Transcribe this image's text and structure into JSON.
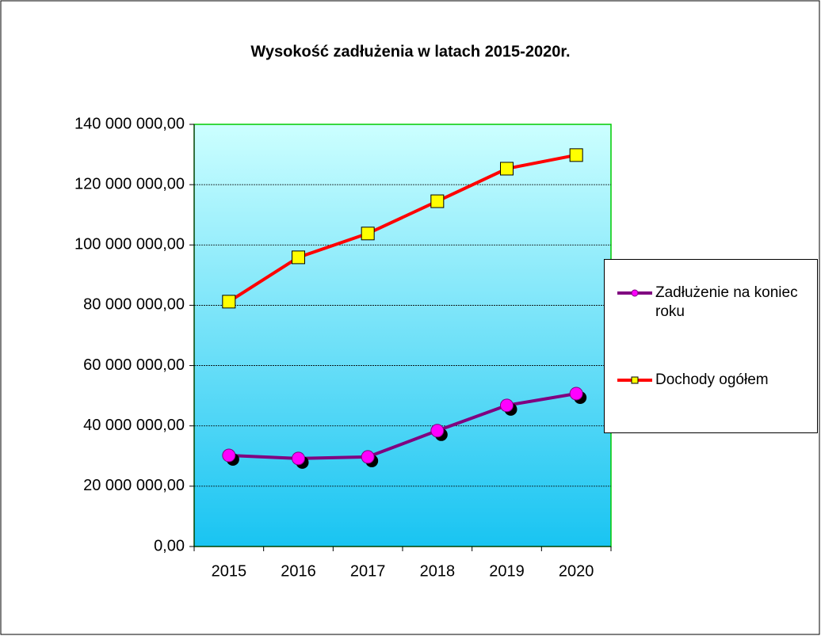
{
  "chart_data": {
    "type": "line",
    "title": "Wysokość zadłużenia w latach 2015-2020r.",
    "categories": [
      "2015",
      "2016",
      "2017",
      "2018",
      "2019",
      "2020"
    ],
    "series": [
      {
        "name": "Zadłużenie na koniec roku",
        "color": "#800080",
        "marker_color": "#ff00ff",
        "values": [
          30200000,
          29200000,
          29700000,
          38400000,
          46800000,
          50700000
        ]
      },
      {
        "name": "Dochody ogółem",
        "color": "#ff0000",
        "marker_color": "#ffff00",
        "values": [
          81200000,
          95900000,
          103800000,
          114500000,
          125300000,
          129800000
        ]
      }
    ],
    "ylim": [
      0,
      140000000
    ],
    "yticks": [
      {
        "value": 0,
        "label": "0,00"
      },
      {
        "value": 20000000,
        "label": "20 000 000,00"
      },
      {
        "value": 40000000,
        "label": "40 000 000,00"
      },
      {
        "value": 60000000,
        "label": "60 000 000,00"
      },
      {
        "value": 80000000,
        "label": "80 000 000,00"
      },
      {
        "value": 100000000,
        "label": "100 000 000,00"
      },
      {
        "value": 120000000,
        "label": "120 000 000,00"
      },
      {
        "value": 140000000,
        "label": "140 000 000,00"
      }
    ],
    "grid": true,
    "legend": "right"
  }
}
